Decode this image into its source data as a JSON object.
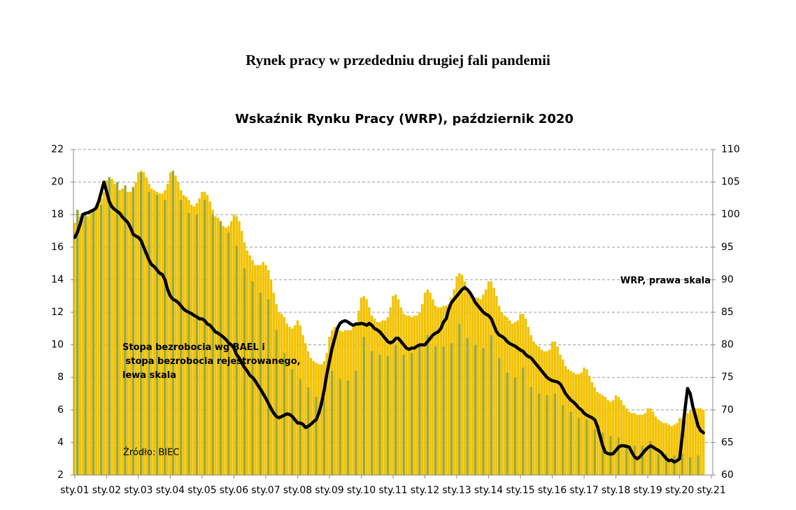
{
  "page_title": "Rynek pracy w przededniu drugiej fali pandemii",
  "chart_data": {
    "type": "bar",
    "title": "Wskaźnik Rynku Pracy (WRP), październik 2020",
    "annotations": {
      "wrp": "WRP, prawa skala",
      "unemployment": [
        "Stopa bezrobocia wg BAEL i",
        " stopa bezrobocia rejestrowanego,",
        "lewa skala"
      ],
      "source": "Źródło: BIEC"
    },
    "categories": [
      "sty.01",
      null,
      null,
      null,
      null,
      null,
      null,
      null,
      null,
      null,
      null,
      null,
      "sty.02",
      null,
      null,
      null,
      null,
      null,
      null,
      null,
      null,
      null,
      null,
      null,
      "sty.03",
      null,
      null,
      null,
      null,
      null,
      null,
      null,
      null,
      null,
      null,
      null,
      "sty.04",
      null,
      null,
      null,
      null,
      null,
      null,
      null,
      null,
      null,
      null,
      null,
      "sty.05",
      null,
      null,
      null,
      null,
      null,
      null,
      null,
      null,
      null,
      null,
      null,
      "sty.06",
      null,
      null,
      null,
      null,
      null,
      null,
      null,
      null,
      null,
      null,
      null,
      "sty.07",
      null,
      null,
      null,
      null,
      null,
      null,
      null,
      null,
      null,
      null,
      null,
      "sty.08",
      null,
      null,
      null,
      null,
      null,
      null,
      null,
      null,
      null,
      null,
      null,
      "sty.09",
      null,
      null,
      null,
      null,
      null,
      null,
      null,
      null,
      null,
      null,
      null,
      "sty.10",
      null,
      null,
      null,
      null,
      null,
      null,
      null,
      null,
      null,
      null,
      null,
      "sty.11",
      null,
      null,
      null,
      null,
      null,
      null,
      null,
      null,
      null,
      null,
      null,
      "sty.12",
      null,
      null,
      null,
      null,
      null,
      null,
      null,
      null,
      null,
      null,
      null,
      "sty.13",
      null,
      null,
      null,
      null,
      null,
      null,
      null,
      null,
      null,
      null,
      null,
      "sty.14",
      null,
      null,
      null,
      null,
      null,
      null,
      null,
      null,
      null,
      null,
      null,
      "sty.15",
      null,
      null,
      null,
      null,
      null,
      null,
      null,
      null,
      null,
      null,
      null,
      "sty.16",
      null,
      null,
      null,
      null,
      null,
      null,
      null,
      null,
      null,
      null,
      null,
      "sty.17",
      null,
      null,
      null,
      null,
      null,
      null,
      null,
      null,
      null,
      null,
      null,
      "sty.18",
      null,
      null,
      null,
      null,
      null,
      null,
      null,
      null,
      null,
      null,
      null,
      "sty.19",
      null,
      null,
      null,
      null,
      null,
      null,
      null,
      null,
      null,
      null,
      null,
      "sty.20",
      null,
      null,
      null,
      null,
      null,
      null,
      null,
      null,
      null,
      null,
      null,
      "sty.21"
    ],
    "series": [
      {
        "type": "bar",
        "color": "#f2c200",
        "values": [
          17.5,
          17.8,
          17.9,
          17.9,
          17.8,
          17.9,
          18.1,
          18.2,
          18.4,
          18.6,
          19.0,
          19.4,
          20.1,
          20.3,
          20.2,
          19.9,
          19.6,
          19.5,
          19.6,
          19.5,
          19.4,
          19.4,
          19.7,
          20.0,
          20.6,
          20.7,
          20.6,
          20.3,
          19.9,
          19.6,
          19.5,
          19.4,
          19.3,
          19.3,
          19.5,
          19.9,
          20.6,
          20.6,
          20.4,
          20.0,
          19.5,
          19.2,
          19.1,
          18.9,
          18.6,
          18.5,
          18.7,
          19.0,
          19.4,
          19.4,
          19.2,
          18.8,
          18.3,
          17.9,
          17.8,
          17.6,
          17.3,
          17.2,
          17.3,
          17.6,
          18.0,
          17.9,
          17.6,
          17.0,
          16.3,
          15.8,
          15.5,
          15.2,
          14.9,
          14.9,
          14.9,
          15.1,
          14.9,
          14.6,
          14.0,
          13.2,
          12.5,
          12.0,
          11.9,
          11.7,
          11.3,
          11.1,
          11.0,
          11.2,
          11.5,
          11.2,
          10.6,
          10.1,
          9.6,
          9.2,
          9.0,
          8.9,
          8.8,
          8.8,
          9.0,
          9.5,
          10.5,
          10.9,
          11.1,
          11.0,
          10.9,
          10.8,
          10.9,
          10.9,
          10.9,
          11.1,
          11.4,
          12.1,
          12.9,
          13.0,
          12.8,
          12.3,
          11.8,
          11.6,
          11.4,
          11.4,
          11.5,
          11.5,
          11.7,
          12.3,
          13.0,
          13.1,
          12.8,
          12.3,
          11.9,
          11.8,
          11.8,
          11.7,
          11.8,
          11.8,
          12.0,
          12.5,
          13.2,
          13.4,
          13.2,
          12.8,
          12.4,
          12.3,
          12.3,
          12.4,
          12.4,
          12.5,
          12.9,
          13.4,
          14.2,
          14.4,
          14.3,
          13.9,
          13.4,
          13.1,
          13.0,
          12.9,
          12.9,
          12.8,
          13.1,
          13.4,
          13.9,
          13.9,
          13.5,
          13.0,
          12.4,
          12.0,
          11.8,
          11.7,
          11.5,
          11.3,
          11.4,
          11.5,
          11.9,
          11.9,
          11.6,
          11.1,
          10.6,
          10.2,
          10.0,
          9.9,
          9.7,
          9.6,
          9.6,
          9.7,
          10.2,
          10.2,
          9.9,
          9.4,
          9.1,
          8.7,
          8.5,
          8.4,
          8.3,
          8.2,
          8.2,
          8.3,
          8.6,
          8.5,
          8.1,
          7.7,
          7.4,
          7.1,
          7.0,
          6.9,
          6.8,
          6.6,
          6.5,
          6.6,
          6.9,
          6.8,
          6.6,
          6.3,
          6.1,
          5.9,
          5.8,
          5.8,
          5.7,
          5.7,
          5.7,
          5.8,
          6.1,
          6.1,
          5.9,
          5.6,
          5.4,
          5.3,
          5.2,
          5.2,
          5.1,
          5.0,
          5.1,
          5.2,
          5.5,
          5.5,
          5.4,
          5.8,
          6.0,
          6.1,
          6.1,
          6.1,
          6.1,
          6.0,
          null,
          null,
          null
        ]
      },
      {
        "type": "bar",
        "color": "#9aa83a",
        "values": [
          null,
          18.3,
          null,
          null,
          18.0,
          null,
          null,
          18.3,
          null,
          null,
          18.6,
          null,
          null,
          20.3,
          null,
          null,
          20.0,
          null,
          null,
          19.8,
          null,
          null,
          19.7,
          null,
          null,
          20.6,
          null,
          null,
          19.4,
          null,
          null,
          19.2,
          null,
          null,
          18.9,
          null,
          null,
          20.7,
          null,
          null,
          18.9,
          null,
          null,
          18.1,
          null,
          null,
          18.0,
          null,
          null,
          18.9,
          null,
          null,
          18.0,
          null,
          null,
          17.6,
          null,
          null,
          16.9,
          null,
          null,
          16.1,
          null,
          null,
          14.7,
          null,
          null,
          13.9,
          null,
          null,
          13.2,
          null,
          null,
          12.8,
          null,
          null,
          10.9,
          null,
          null,
          9.5,
          null,
          null,
          8.5,
          null,
          null,
          7.9,
          null,
          null,
          7.4,
          null,
          null,
          6.8,
          null,
          null,
          6.7,
          null,
          null,
          8.4,
          null,
          null,
          7.9,
          null,
          null,
          7.8,
          null,
          null,
          8.4,
          null,
          null,
          10.5,
          null,
          null,
          9.6,
          null,
          null,
          9.4,
          null,
          null,
          9.3,
          null,
          null,
          10.0,
          null,
          null,
          9.4,
          null,
          null,
          9.5,
          null,
          null,
          10.0,
          null,
          null,
          10.6,
          null,
          null,
          9.9,
          null,
          null,
          9.9,
          null,
          null,
          10.1,
          null,
          null,
          11.3,
          null,
          null,
          10.4,
          null,
          null,
          10.0,
          null,
          null,
          9.8,
          null,
          null,
          10.6,
          null,
          null,
          9.2,
          null,
          null,
          8.3,
          null,
          null,
          8.0,
          null,
          null,
          8.6,
          null,
          null,
          7.4,
          null,
          null,
          7.0,
          null,
          null,
          6.9,
          null,
          null,
          7.0,
          null,
          null,
          6.3,
          null,
          null,
          5.9,
          null,
          null,
          5.5,
          null,
          null,
          5.4,
          null,
          null,
          4.8,
          null,
          null,
          4.6,
          null,
          null,
          4.4,
          null,
          null,
          4.3,
          null,
          null,
          3.9,
          null,
          null,
          3.8,
          null,
          null,
          3.8,
          null,
          null,
          4.1,
          null,
          null,
          3.3,
          null,
          null,
          3.3,
          null,
          null,
          3.2,
          null,
          null,
          3.3,
          null,
          null,
          3.1,
          null,
          null,
          3.2,
          null,
          null,
          null,
          null,
          null
        ]
      },
      {
        "type": "line",
        "axis": "y2",
        "color": "#000000",
        "values": [
          96.5,
          97.3,
          98.5,
          100,
          100.2,
          100.3,
          100.5,
          100.7,
          101,
          102,
          103.5,
          105,
          103.5,
          102,
          101.2,
          100.8,
          100.5,
          100.2,
          99.6,
          99.2,
          98.8,
          98,
          97,
          96.7,
          96.5,
          96,
          95,
          94,
          93,
          92.3,
          92,
          91.5,
          91,
          90.8,
          90,
          88.5,
          87.5,
          87,
          86.8,
          86.5,
          86,
          85.5,
          85.2,
          85,
          84.8,
          84.5,
          84.3,
          84,
          84,
          83.7,
          83.2,
          83,
          82.5,
          82,
          81.8,
          81.5,
          81.2,
          80.8,
          80.3,
          80,
          79.5,
          78.5,
          78,
          77.2,
          76.5,
          76,
          75.3,
          75,
          74.5,
          73.8,
          73.2,
          72.5,
          71.8,
          71,
          70.2,
          69.5,
          69,
          68.8,
          69,
          69.2,
          69.4,
          69.3,
          69,
          68.5,
          68,
          68,
          67.8,
          67.3,
          67.5,
          67.8,
          68.2,
          68.5,
          69.5,
          71,
          73,
          75.5,
          77.5,
          79.5,
          81,
          82.5,
          83.3,
          83.6,
          83.7,
          83.5,
          83.2,
          83,
          83.2,
          83.2,
          83.3,
          83.2,
          83,
          83.3,
          83,
          82.5,
          82.3,
          82,
          81.5,
          81,
          80.5,
          80.3,
          80.5,
          81,
          81,
          80.5,
          80,
          79.5,
          79.3,
          79.5,
          79.5,
          79.8,
          80,
          80,
          80,
          80.5,
          81,
          81.5,
          81.8,
          82,
          82.5,
          83.5,
          84,
          85.5,
          86.5,
          87,
          87.5,
          88,
          88.5,
          88.8,
          88.5,
          88,
          87.3,
          86.5,
          86,
          85.5,
          85,
          84.7,
          84.5,
          84,
          83,
          82,
          81.5,
          81.3,
          81,
          80.5,
          80.2,
          80,
          79.8,
          79.5,
          79.2,
          79,
          78.5,
          78.2,
          78,
          77.5,
          77,
          76.5,
          76,
          75.5,
          75,
          74.7,
          74.5,
          74.4,
          74.3,
          74,
          73.3,
          72.5,
          72,
          71.5,
          71.2,
          70.8,
          70.3,
          70,
          69.5,
          69.2,
          69,
          68.8,
          68.5,
          67.5,
          66,
          64.5,
          63.5,
          63.3,
          63.2,
          63.3,
          63.8,
          64.3,
          64.5,
          64.5,
          64.4,
          64.3,
          63.5,
          62.8,
          62.5,
          62.8,
          63.3,
          63.8,
          64.2,
          64.5,
          64.3,
          64,
          63.8,
          63.5,
          63,
          62.5,
          62.2,
          62.3,
          62,
          62.2,
          62.5,
          66,
          70,
          73.3,
          72.5,
          70.5,
          69,
          67.5,
          66.8,
          66.5,
          null,
          null,
          null
        ]
      }
    ],
    "ylim": [
      2,
      22
    ],
    "yticks": [
      2,
      4,
      6,
      8,
      10,
      12,
      14,
      16,
      18,
      20,
      22
    ],
    "y2lim": [
      60,
      110
    ],
    "y2ticks": [
      60,
      65,
      70,
      75,
      80,
      85,
      90,
      95,
      100,
      105,
      110
    ],
    "grid": true
  }
}
